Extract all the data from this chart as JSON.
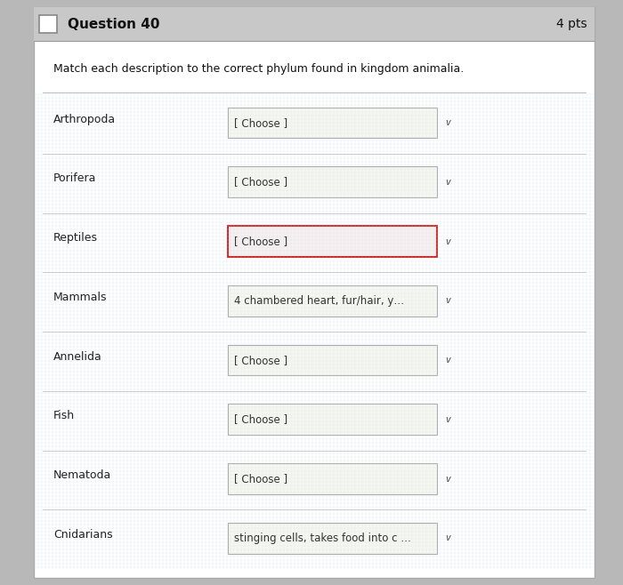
{
  "title": "Question 40",
  "pts": "4 pts",
  "instruction": "Match each description to the correct phylum found in kingdom animalia.",
  "rows": [
    {
      "label": "Arthropoda",
      "dropdown": "[ Choose ]",
      "red_border": false
    },
    {
      "label": "Porifera",
      "dropdown": "[ Choose ]",
      "red_border": false
    },
    {
      "label": "Reptiles",
      "dropdown": "[ Choose ]",
      "red_border": true
    },
    {
      "label": "Mammals",
      "dropdown": "4 chambered heart, fur/hair, y… ",
      "red_border": false
    },
    {
      "label": "Annelida",
      "dropdown": "[ Choose ]",
      "red_border": false
    },
    {
      "label": "Fish",
      "dropdown": "[ Choose ]",
      "red_border": false
    },
    {
      "label": "Nematoda",
      "dropdown": "[ Choose ]",
      "red_border": false
    },
    {
      "label": "Cnidarians",
      "dropdown": "stinging cells, takes food into c …",
      "red_border": false
    }
  ],
  "outer_bg": "#b8b8b8",
  "card_bg": "#ffffff",
  "header_bg": "#c8c8c8",
  "row_bg_main": "#f0ece0",
  "texture_color1": "#d8eaee",
  "texture_color2": "#f0f0e0",
  "dropdown_bg": "#f8f8f0",
  "dropdown_border": "#aaaaaa",
  "red_border_color": "#cc2222",
  "sep_line_color": "#bbbbbb",
  "title_fontsize": 11,
  "pts_fontsize": 10,
  "label_fontsize": 9,
  "dropdown_fontsize": 8.5,
  "instruction_fontsize": 9
}
